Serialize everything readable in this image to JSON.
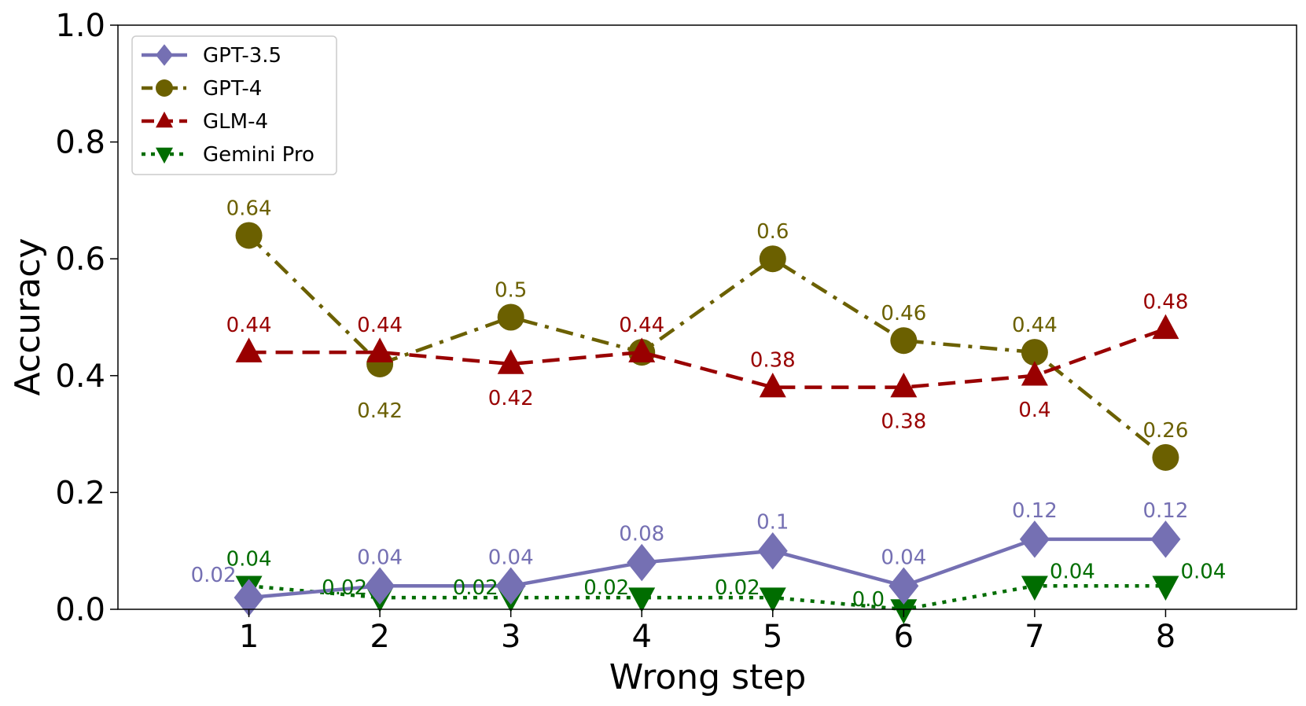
{
  "chart_data": {
    "type": "line",
    "xlabel": "Wrong step",
    "ylabel": "Accuracy",
    "x": [
      1,
      2,
      3,
      4,
      5,
      6,
      7,
      8
    ],
    "xticks": [
      "1",
      "2",
      "3",
      "4",
      "5",
      "6",
      "7",
      "8"
    ],
    "xlim": [
      0,
      9
    ],
    "ylim": [
      0,
      1
    ],
    "yticks": [
      "0.0",
      "0.2",
      "0.4",
      "0.6",
      "0.8",
      "1.0"
    ],
    "grid": false,
    "legend_position": "top-left",
    "series": [
      {
        "name": "GPT-3.5",
        "marker": "diamond",
        "line_style": "solid",
        "color": "#7570b3",
        "values": [
          0.02,
          0.04,
          0.04,
          0.08,
          0.1,
          0.04,
          0.12,
          0.12
        ],
        "labels": [
          "0.02",
          "0.04",
          "0.04",
          "0.08",
          "0.1",
          "0.04",
          "0.12",
          "0.12"
        ]
      },
      {
        "name": "GPT-4",
        "marker": "circle",
        "line_style": "dashdot",
        "color": "#6b6000",
        "values": [
          0.64,
          0.42,
          0.5,
          0.44,
          0.6,
          0.46,
          0.44,
          0.26
        ],
        "labels": [
          "0.64",
          "0.42",
          "0.5",
          "0.44",
          "0.6",
          "0.46",
          "0.44",
          "0.26"
        ]
      },
      {
        "name": "GLM-4",
        "marker": "triangle-up",
        "line_style": "dashed",
        "color": "#990000",
        "values": [
          0.44,
          0.44,
          0.42,
          0.44,
          0.38,
          0.38,
          0.4,
          0.48
        ],
        "labels": [
          "0.44",
          "0.44",
          "0.42",
          "0.44",
          "0.38",
          "0.38",
          "0.4",
          "0.48"
        ]
      },
      {
        "name": "Gemini Pro",
        "marker": "triangle-down",
        "line_style": "dotted",
        "color": "#006d00",
        "values": [
          0.04,
          0.02,
          0.02,
          0.02,
          0.02,
          0.0,
          0.04,
          0.04
        ],
        "labels": [
          "0.04",
          "0.02",
          "0.02",
          "0.02",
          "0.02",
          "0.0",
          "0.04",
          "0.04"
        ]
      }
    ]
  }
}
